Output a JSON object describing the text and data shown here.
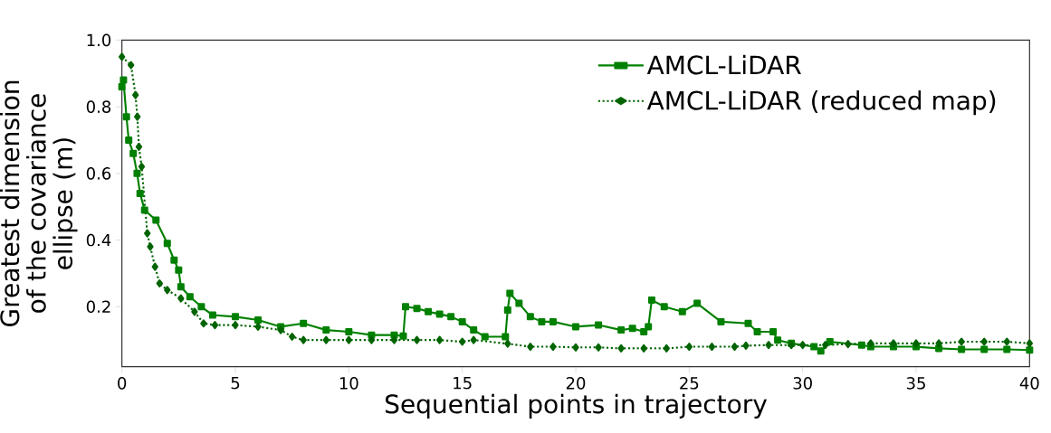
{
  "chart_data": {
    "type": "line",
    "xlabel": "Sequential points in trajectory",
    "ylabel": "Greatest dimension of the covariance ellipse (m)",
    "xlim": [
      0,
      40
    ],
    "ylim": [
      0.02,
      1.0
    ],
    "xticks": [
      0,
      5,
      10,
      15,
      20,
      25,
      30,
      35,
      40
    ],
    "yticks": [
      0.2,
      0.4,
      0.6,
      0.8,
      {
        "value": 1.0,
        "label": "1.0"
      }
    ],
    "grid": false,
    "legend": "top right",
    "series": [
      {
        "name": "AMCL-LiDAR",
        "color": "#008000",
        "marker": "square",
        "line_style": "solid",
        "x": [
          0,
          0.07,
          0.2,
          0.3,
          0.5,
          0.67,
          0.8,
          1.0,
          1.5,
          2.0,
          2.3,
          2.5,
          2.6,
          3.0,
          3.5,
          4.0,
          5,
          6,
          7,
          8,
          9,
          10,
          11,
          12,
          12.4,
          12.5,
          13,
          13.5,
          14,
          14.5,
          15,
          15.5,
          16,
          16.9,
          17.0,
          17.1,
          17.5,
          18,
          18.5,
          19,
          20,
          21,
          22,
          22.5,
          23,
          23.2,
          23.35,
          23.9,
          24.7,
          25.35,
          26.4,
          27.6,
          28.0,
          28.7,
          28.9,
          29.5,
          30.5,
          30.8,
          31.2,
          32.6,
          33,
          34,
          35,
          36,
          37,
          38,
          39,
          40
        ],
        "values": [
          0.86,
          0.88,
          0.77,
          0.7,
          0.66,
          0.6,
          0.54,
          0.49,
          0.46,
          0.39,
          0.34,
          0.31,
          0.26,
          0.23,
          0.2,
          0.175,
          0.17,
          0.16,
          0.14,
          0.15,
          0.13,
          0.125,
          0.115,
          0.115,
          0.112,
          0.2,
          0.195,
          0.185,
          0.178,
          0.17,
          0.155,
          0.13,
          0.11,
          0.11,
          0.19,
          0.24,
          0.21,
          0.17,
          0.155,
          0.155,
          0.14,
          0.145,
          0.13,
          0.135,
          0.125,
          0.14,
          0.22,
          0.2,
          0.185,
          0.21,
          0.155,
          0.15,
          0.125,
          0.125,
          0.1,
          0.09,
          0.08,
          0.067,
          0.095,
          0.085,
          0.08,
          0.08,
          0.08,
          0.075,
          0.072,
          0.072,
          0.072,
          0.07
        ]
      },
      {
        "name": "AMCL-LiDAR (reduced map)",
        "color": "#006400",
        "marker": "diamond",
        "line_style": "dotted",
        "x": [
          0,
          0.4,
          0.6,
          0.68,
          0.75,
          0.87,
          1.12,
          1.25,
          1.46,
          1.66,
          2.0,
          2.6,
          3.2,
          3.6,
          4.1,
          5.0,
          6,
          7,
          7.5,
          8,
          9,
          10,
          11,
          12,
          13,
          14,
          15,
          15.5,
          17,
          18,
          19,
          20,
          21,
          22,
          23,
          24,
          25,
          26,
          27,
          27.5,
          28.5,
          29.5,
          30,
          31,
          32,
          33,
          34,
          35,
          36,
          37,
          38,
          39,
          40
        ],
        "values": [
          0.95,
          0.925,
          0.835,
          0.77,
          0.68,
          0.62,
          0.42,
          0.38,
          0.32,
          0.27,
          0.25,
          0.225,
          0.185,
          0.15,
          0.145,
          0.145,
          0.14,
          0.13,
          0.11,
          0.1,
          0.1,
          0.1,
          0.1,
          0.1,
          0.1,
          0.1,
          0.095,
          0.1,
          0.089,
          0.08,
          0.08,
          0.078,
          0.078,
          0.075,
          0.075,
          0.075,
          0.08,
          0.08,
          0.08,
          0.083,
          0.085,
          0.085,
          0.085,
          0.085,
          0.088,
          0.09,
          0.09,
          0.09,
          0.09,
          0.095,
          0.095,
          0.095,
          0.09
        ]
      }
    ]
  }
}
